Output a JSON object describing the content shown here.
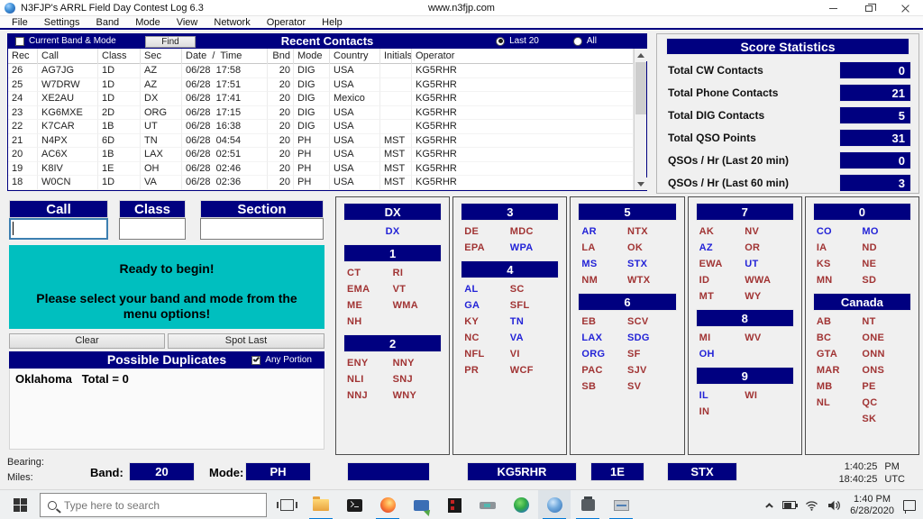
{
  "colors": {
    "navy": "#000080",
    "teal": "#00bfbf",
    "worked": "#2323d7",
    "unworked": "#a13434",
    "taskbar_accent": "#0078d7"
  },
  "window": {
    "title": "N3FJP's ARRL Field Day Contest Log 6.3",
    "url": "www.n3fjp.com"
  },
  "menu": {
    "items": [
      "File",
      "Settings",
      "Band",
      "Mode",
      "View",
      "Network",
      "Operator",
      "Help"
    ]
  },
  "recent_contacts": {
    "title": "Recent Contacts",
    "current_band_mode_label": "Current Band & Mode",
    "current_band_mode_checked": false,
    "find_button": "Find",
    "filter_last20_label": "Last 20",
    "filter_all_label": "All",
    "filter_selected": "Last 20",
    "columns": [
      "Rec",
      "Call",
      "Class",
      "Sec",
      "Date  /  Time",
      "Bnd",
      "Mode",
      "Country",
      "Initials",
      "Operator"
    ],
    "rows": [
      {
        "rec": "26",
        "call": "AG7JG",
        "class": "1D",
        "sec": "AZ",
        "date": "06/28",
        "time": "17:58",
        "bnd": "20",
        "mode": "DIG",
        "country": "USA",
        "initials": "",
        "operator": "KG5RHR"
      },
      {
        "rec": "25",
        "call": "W7DRW",
        "class": "1D",
        "sec": "AZ",
        "date": "06/28",
        "time": "17:51",
        "bnd": "20",
        "mode": "DIG",
        "country": "USA",
        "initials": "",
        "operator": "KG5RHR"
      },
      {
        "rec": "24",
        "call": "XE2AU",
        "class": "1D",
        "sec": "DX",
        "date": "06/28",
        "time": "17:41",
        "bnd": "20",
        "mode": "DIG",
        "country": "Mexico",
        "initials": "",
        "operator": "KG5RHR"
      },
      {
        "rec": "23",
        "call": "KG6MXE",
        "class": "2D",
        "sec": "ORG",
        "date": "06/28",
        "time": "17:15",
        "bnd": "20",
        "mode": "DIG",
        "country": "USA",
        "initials": "",
        "operator": "KG5RHR"
      },
      {
        "rec": "22",
        "call": "K7CAR",
        "class": "1B",
        "sec": "UT",
        "date": "06/28",
        "time": "16:38",
        "bnd": "20",
        "mode": "DIG",
        "country": "USA",
        "initials": "",
        "operator": "KG5RHR"
      },
      {
        "rec": "21",
        "call": "N4PX",
        "class": "6D",
        "sec": "TN",
        "date": "06/28",
        "time": "04:54",
        "bnd": "20",
        "mode": "PH",
        "country": "USA",
        "initials": "MST",
        "operator": "KG5RHR"
      },
      {
        "rec": "20",
        "call": "AC6X",
        "class": "1B",
        "sec": "LAX",
        "date": "06/28",
        "time": "02:51",
        "bnd": "20",
        "mode": "PH",
        "country": "USA",
        "initials": "MST",
        "operator": "KG5RHR"
      },
      {
        "rec": "19",
        "call": "K8IV",
        "class": "1E",
        "sec": "OH",
        "date": "06/28",
        "time": "02:46",
        "bnd": "20",
        "mode": "PH",
        "country": "USA",
        "initials": "MST",
        "operator": "KG5RHR"
      },
      {
        "rec": "18",
        "call": "W0CN",
        "class": "1D",
        "sec": "VA",
        "date": "06/28",
        "time": "02:36",
        "bnd": "20",
        "mode": "PH",
        "country": "USA",
        "initials": "MST",
        "operator": "KG5RHR"
      }
    ]
  },
  "score_statistics": {
    "title": "Score Statistics",
    "stats": [
      {
        "label": "Total CW Contacts",
        "value": "0"
      },
      {
        "label": "Total Phone Contacts",
        "value": "21"
      },
      {
        "label": "Total DIG Contacts",
        "value": "5"
      },
      {
        "label": "Total QSO Points",
        "value": "31"
      },
      {
        "label": "QSOs / Hr (Last 20 min)",
        "value": "0"
      },
      {
        "label": "QSOs / Hr (Last 60 min)",
        "value": "3"
      }
    ]
  },
  "entry": {
    "call_label": "Call",
    "class_label": "Class",
    "section_label": "Section",
    "call_value": "",
    "class_value": "",
    "section_value": ""
  },
  "message": {
    "line1": "Ready to begin!",
    "line2": "Please select your band and mode from the menu options!"
  },
  "action_buttons": {
    "clear": "Clear",
    "spot_last": "Spot Last"
  },
  "possible_duplicates": {
    "title": "Possible Duplicates",
    "any_portion_label": "Any Portion",
    "any_portion_checked": true,
    "entries": [
      {
        "name": "Oklahoma",
        "total": "Total = 0"
      }
    ]
  },
  "sections": {
    "columns": [
      {
        "groups": [
          {
            "header": "DX",
            "layout": "center",
            "items": [
              {
                "t": "DX",
                "w": 1
              }
            ]
          },
          {
            "header": "1",
            "items": [
              {
                "t": "CT"
              },
              {
                "t": "RI"
              },
              {
                "t": "EMA"
              },
              {
                "t": "VT"
              },
              {
                "t": "ME"
              },
              {
                "t": "WMA"
              },
              {
                "t": "NH"
              }
            ]
          },
          {
            "header": "2",
            "items": [
              {
                "t": "ENY"
              },
              {
                "t": "NNY"
              },
              {
                "t": "NLI"
              },
              {
                "t": "SNJ"
              },
              {
                "t": "NNJ"
              },
              {
                "t": "WNY"
              }
            ]
          }
        ]
      },
      {
        "groups": [
          {
            "header": "3",
            "items": [
              {
                "t": "DE"
              },
              {
                "t": "MDC"
              },
              {
                "t": "EPA"
              },
              {
                "t": "WPA",
                "w": 1
              }
            ]
          },
          {
            "header": "4",
            "items": [
              {
                "t": "AL",
                "w": 1
              },
              {
                "t": "SC"
              },
              {
                "t": "GA",
                "w": 1
              },
              {
                "t": "SFL"
              },
              {
                "t": "KY"
              },
              {
                "t": "TN",
                "w": 1
              },
              {
                "t": "NC"
              },
              {
                "t": "VA",
                "w": 1
              },
              {
                "t": "NFL"
              },
              {
                "t": "VI"
              },
              {
                "t": "PR"
              },
              {
                "t": "WCF"
              }
            ]
          }
        ]
      },
      {
        "groups": [
          {
            "header": "5",
            "items": [
              {
                "t": "AR",
                "w": 1
              },
              {
                "t": "NTX"
              },
              {
                "t": "LA"
              },
              {
                "t": "OK"
              },
              {
                "t": "MS",
                "w": 1
              },
              {
                "t": "STX",
                "w": 1
              },
              {
                "t": "NM"
              },
              {
                "t": "WTX"
              }
            ]
          },
          {
            "header": "6",
            "items": [
              {
                "t": "EB"
              },
              {
                "t": "SCV"
              },
              {
                "t": "LAX",
                "w": 1
              },
              {
                "t": "SDG",
                "w": 1
              },
              {
                "t": "ORG",
                "w": 1
              },
              {
                "t": "SF"
              },
              {
                "t": "PAC"
              },
              {
                "t": "SJV"
              },
              {
                "t": "SB"
              },
              {
                "t": "SV"
              }
            ]
          }
        ]
      },
      {
        "groups": [
          {
            "header": "7",
            "items": [
              {
                "t": "AK"
              },
              {
                "t": "NV"
              },
              {
                "t": "AZ",
                "w": 1
              },
              {
                "t": "OR"
              },
              {
                "t": "EWA"
              },
              {
                "t": "UT",
                "w": 1
              },
              {
                "t": "ID"
              },
              {
                "t": "WWA"
              },
              {
                "t": "MT"
              },
              {
                "t": "WY"
              }
            ]
          },
          {
            "header": "8",
            "items": [
              {
                "t": "MI"
              },
              {
                "t": "WV"
              },
              {
                "t": "OH",
                "w": 1
              }
            ]
          },
          {
            "header": "9",
            "items": [
              {
                "t": "IL",
                "w": 1
              },
              {
                "t": "WI"
              },
              {
                "t": "IN"
              }
            ]
          }
        ]
      },
      {
        "groups": [
          {
            "header": "0",
            "items": [
              {
                "t": "CO",
                "w": 1
              },
              {
                "t": "MO",
                "w": 1
              },
              {
                "t": "IA"
              },
              {
                "t": "ND"
              },
              {
                "t": "KS"
              },
              {
                "t": "NE"
              },
              {
                "t": "MN"
              },
              {
                "t": "SD"
              }
            ]
          },
          {
            "header": "Canada",
            "items": [
              {
                "t": "AB"
              },
              {
                "t": "NT"
              },
              {
                "t": "BC"
              },
              {
                "t": "ONE"
              },
              {
                "t": "GTA"
              },
              {
                "t": "ONN"
              },
              {
                "t": "MAR"
              },
              {
                "t": "ONS"
              },
              {
                "t": "MB"
              },
              {
                "t": "PE"
              },
              {
                "t": "NL"
              },
              {
                "t": "QC"
              },
              {
                "t": ""
              },
              {
                "t": "SK"
              }
            ]
          }
        ]
      }
    ]
  },
  "status_bar": {
    "bearing_label": "Bearing:",
    "miles_label": "Miles:",
    "band_label": "Band:",
    "band_value": "20",
    "mode_label": "Mode:",
    "mode_value": "PH",
    "spot_value": "",
    "operator_value": "KG5RHR",
    "class_value": "1E",
    "section_value": "STX",
    "local_time": "1:40:25",
    "local_suffix": "PM",
    "utc_time": "18:40:25",
    "utc_suffix": "UTC"
  },
  "taskbar": {
    "search_placeholder": "Type here to search",
    "tray_time": "1:40 PM",
    "tray_date": "6/28/2020"
  }
}
